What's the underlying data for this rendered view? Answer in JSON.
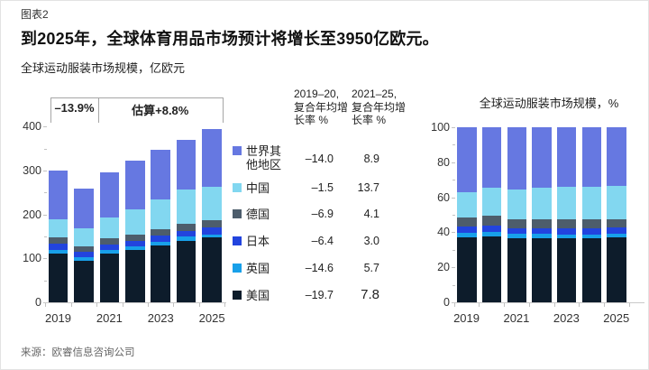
{
  "exhibit_label": "图表2",
  "title": "到2025年，全球体育用品市场预计将增长至3950亿欧元。",
  "subtitle": "全球运动服装市场规模，亿欧元",
  "source": "来源：欧睿信息咨询公司",
  "colors": {
    "美国": "#0D1C2B",
    "英国": "#18A0E9",
    "日本": "#2244DE",
    "德国": "#4D5D6C",
    "中国": "#82D7F0",
    "世界其他地区": "#6678E1"
  },
  "legend_table": {
    "col1_header": "2019–20,\n复合年均增长率 %",
    "col2_header": "2021–25,\n复合年均增长率 %",
    "rows": [
      {
        "label": "世界其他地区",
        "series": "世界其他地区",
        "cagr_2019_20": "–14.0",
        "cagr_2021_25": "8.9"
      },
      {
        "label": "中国",
        "series": "中国",
        "cagr_2019_20": "–1.5",
        "cagr_2021_25": "13.7"
      },
      {
        "label": "德国",
        "series": "德国",
        "cagr_2019_20": "–6.9",
        "cagr_2021_25": "4.1"
      },
      {
        "label": "日本",
        "series": "日本",
        "cagr_2019_20": "–6.4",
        "cagr_2021_25": "3.0"
      },
      {
        "label": "英国",
        "series": "英国",
        "cagr_2019_20": "–14.6",
        "cagr_2021_25": "5.7"
      },
      {
        "label": "美国",
        "series": "美国",
        "cagr_2019_20": "–19.7",
        "cagr_2021_25": "7.8"
      }
    ]
  },
  "chart_data": [
    {
      "type": "bar",
      "stacked": true,
      "title": "全球运动服装市场规模，亿欧元",
      "x": [
        2019,
        2020,
        2021,
        2022,
        2023,
        2024,
        2025
      ],
      "x_tick_labels": [
        "2019",
        "2021",
        "2023",
        "2025"
      ],
      "ylim": [
        0,
        400
      ],
      "yticks": [
        0,
        100,
        200,
        300,
        400
      ],
      "grid": false,
      "legend_position": "right",
      "series": [
        {
          "name": "美国",
          "values": [
            111,
            95,
            111,
            120,
            130,
            140,
            148
          ]
        },
        {
          "name": "英国",
          "values": [
            8,
            8,
            8,
            8,
            8,
            9,
            7
          ]
        },
        {
          "name": "日本",
          "values": [
            15,
            12,
            12,
            12,
            14,
            14,
            16
          ]
        },
        {
          "name": "德国",
          "values": [
            14,
            13,
            14,
            14,
            15,
            16,
            15
          ]
        },
        {
          "name": "中国",
          "values": [
            40,
            40,
            48,
            57,
            67,
            78,
            77
          ]
        },
        {
          "name": "世界其他地区",
          "values": [
            112,
            90,
            102,
            111,
            113,
            113,
            132
          ]
        }
      ],
      "totals": [
        300,
        258,
        295,
        322,
        347,
        370,
        395
      ],
      "annotations": [
        {
          "label": "–13.9%",
          "from_year": 2019,
          "to_year": 2020
        },
        {
          "label": "估算+8.8%",
          "from_year": 2021,
          "to_year": 2025
        }
      ]
    },
    {
      "type": "bar",
      "stacked": true,
      "title": "全球运动服装市场规模，%",
      "x": [
        2019,
        2020,
        2021,
        2022,
        2023,
        2024,
        2025
      ],
      "x_tick_labels": [
        "2019",
        "2021",
        "2023",
        "2025"
      ],
      "ylim": [
        0,
        100
      ],
      "yticks": [
        0,
        20,
        40,
        60,
        80,
        100
      ],
      "grid": false,
      "series": [
        {
          "name": "美国",
          "values": [
            37,
            37.5,
            36.5,
            36.5,
            36.5,
            36.5,
            37
          ]
        },
        {
          "name": "英国",
          "values": [
            2.7,
            2.9,
            2.5,
            2.5,
            2.4,
            2.4,
            2.3
          ]
        },
        {
          "name": "日本",
          "values": [
            3.5,
            3.5,
            3.5,
            3.5,
            3.5,
            3.5,
            3.7
          ]
        },
        {
          "name": "德国",
          "values": [
            5.2,
            5.6,
            5.0,
            5.0,
            4.9,
            4.8,
            4.5
          ]
        },
        {
          "name": "中国",
          "values": [
            14.6,
            16.0,
            17.0,
            18.0,
            18.7,
            18.8,
            19.0
          ]
        },
        {
          "name": "世界其他地区",
          "values": [
            37,
            34.5,
            35.5,
            34.5,
            34,
            34,
            33.5
          ]
        }
      ]
    }
  ]
}
